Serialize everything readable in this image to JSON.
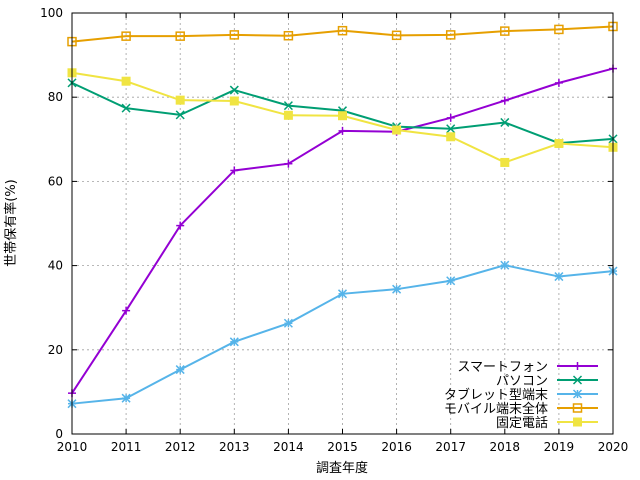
{
  "chart_data": {
    "type": "line",
    "title": "",
    "xlabel": "調査年度",
    "ylabel": "世帯保有率(%)",
    "xlim": [
      2010,
      2020
    ],
    "ylim": [
      0,
      100
    ],
    "x_ticks": [
      "2010",
      "2011",
      "2012",
      "2013",
      "2014",
      "2015",
      "2016",
      "2017",
      "2018",
      "2019",
      "2020"
    ],
    "y_ticks": [
      "0",
      "20",
      "40",
      "60",
      "80",
      "100"
    ],
    "grid": true,
    "legend_position": "bottom-right",
    "x": [
      2010,
      2011,
      2012,
      2013,
      2014,
      2015,
      2016,
      2017,
      2018,
      2019,
      2020
    ],
    "series": [
      {
        "name": "スマートフォン",
        "color": "#9400d3",
        "marker": "plus",
        "values": [
          9.7,
          29.3,
          49.5,
          62.6,
          64.2,
          72.0,
          71.8,
          75.1,
          79.2,
          83.4,
          86.8
        ]
      },
      {
        "name": "パソコン",
        "color": "#009e73",
        "marker": "x",
        "values": [
          83.4,
          77.4,
          75.8,
          81.7,
          78.0,
          76.8,
          73.0,
          72.5,
          74.0,
          69.1,
          70.1
        ]
      },
      {
        "name": "タブレット型端末",
        "color": "#56b4e9",
        "marker": "star",
        "values": [
          7.2,
          8.5,
          15.3,
          21.9,
          26.3,
          33.3,
          34.4,
          36.4,
          40.1,
          37.4,
          38.7
        ]
      },
      {
        "name": "モバイル端末全体",
        "color": "#e69f00",
        "marker": "square",
        "values": [
          93.2,
          94.5,
          94.5,
          94.8,
          94.6,
          95.8,
          94.7,
          94.8,
          95.7,
          96.1,
          96.8
        ]
      },
      {
        "name": "固定電話",
        "color": "#f0e442",
        "marker": "filled-square",
        "values": [
          85.8,
          83.8,
          79.3,
          79.1,
          75.7,
          75.6,
          72.2,
          70.6,
          64.5,
          69.0,
          68.1
        ]
      }
    ]
  }
}
